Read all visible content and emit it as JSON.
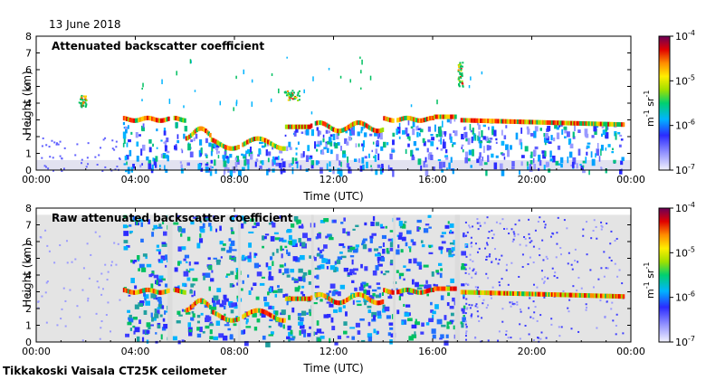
{
  "header": {
    "date": "13 June 2018"
  },
  "footer": {
    "site": "Tikkakoski Vaisala CT25K ceilometer"
  },
  "chart_data": [
    {
      "type": "heatmap",
      "title": "Attenuated backscatter coefficient",
      "xlabel": "Time (UTC)",
      "ylabel": "Height (km)",
      "xticks": [
        "00:00",
        "04:00",
        "08:00",
        "12:00",
        "16:00",
        "20:00",
        "00:00"
      ],
      "xlim": [
        0,
        24
      ],
      "yticks": [
        0,
        1,
        2,
        3,
        4,
        5,
        6,
        7,
        8
      ],
      "ylim": [
        0,
        8
      ],
      "colorbar": {
        "ticks": [
          "10",
          "10",
          "10",
          "10"
        ],
        "exponents": [
          "-4",
          "-5",
          "-6",
          "-7"
        ],
        "label_base": "m",
        "label_exp1": "-1",
        "label_mid": " sr",
        "label_exp2": "-1"
      },
      "features": [
        {
          "label": "boundary layer cloud",
          "time_range": [
            3.5,
            23.7
          ],
          "height_km": 3.0
        },
        {
          "label": "lowered cloud base",
          "time_range": [
            7.0,
            10.0
          ],
          "height_km": 1.6
        },
        {
          "label": "elevated layer",
          "time_range": [
            10.0,
            10.6
          ],
          "height_km": 4.5
        },
        {
          "label": "plume",
          "time_range": [
            1.7,
            2.0
          ],
          "height_km": 4.2
        },
        {
          "label": "plume",
          "time_range": [
            17.0,
            17.2
          ],
          "height_km": 5.5
        }
      ]
    },
    {
      "type": "heatmap",
      "title": "Raw attenuated backscatter coefficient",
      "xlabel": "Time (UTC)",
      "ylabel": "Height (km)",
      "xticks": [
        "00:00",
        "04:00",
        "08:00",
        "12:00",
        "16:00",
        "20:00",
        "00:00"
      ],
      "xlim": [
        0,
        24
      ],
      "yticks": [
        0,
        1,
        2,
        3,
        4,
        5,
        6,
        7,
        8
      ],
      "ylim": [
        0,
        8
      ],
      "colorbar": {
        "ticks": [
          "10",
          "10",
          "10",
          "10"
        ],
        "exponents": [
          "-4",
          "-5",
          "-6",
          "-7"
        ],
        "label_base": "m",
        "label_exp1": "-1",
        "label_mid": " sr",
        "label_exp2": "-1"
      },
      "features": [
        {
          "label": "boundary layer cloud",
          "time_range": [
            3.5,
            23.7
          ],
          "height_km": 3.0
        },
        {
          "label": "noise region",
          "time_range": [
            3.5,
            17.3
          ],
          "height_km": 7.5
        }
      ]
    }
  ]
}
